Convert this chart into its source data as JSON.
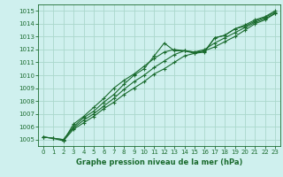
{
  "title": "Graphe pression niveau de la mer (hPa)",
  "background_color": "#cff0ee",
  "grid_color": "#aad8cc",
  "line_color": "#1a6b2e",
  "xlim": [
    -0.5,
    23.5
  ],
  "ylim": [
    1004.5,
    1015.5
  ],
  "xticks": [
    0,
    1,
    2,
    3,
    4,
    5,
    6,
    7,
    8,
    9,
    10,
    11,
    12,
    13,
    14,
    15,
    16,
    17,
    18,
    19,
    20,
    21,
    22,
    23
  ],
  "yticks": [
    1005,
    1006,
    1007,
    1008,
    1009,
    1010,
    1011,
    1012,
    1013,
    1014,
    1015
  ],
  "series": [
    {
      "x": [
        0,
        1,
        2,
        3,
        4,
        5,
        6,
        7,
        8,
        9,
        10,
        11,
        12,
        13,
        14,
        15,
        16,
        17,
        18,
        19,
        20,
        21,
        22,
        23
      ],
      "y": [
        1005.2,
        1005.1,
        1005.0,
        1006.0,
        1006.7,
        1007.2,
        1007.9,
        1008.5,
        1009.3,
        1010.0,
        1010.5,
        1011.5,
        1012.5,
        1011.9,
        1011.9,
        1011.7,
        1011.8,
        1012.9,
        1013.1,
        1013.6,
        1013.8,
        1014.2,
        1014.5,
        1014.9
      ]
    },
    {
      "x": [
        0,
        1,
        2,
        3,
        4,
        5,
        6,
        7,
        8,
        9,
        10,
        11,
        12,
        13,
        14,
        15,
        16,
        17,
        18,
        19,
        20,
        21,
        22,
        23
      ],
      "y": [
        1005.2,
        1005.1,
        1004.9,
        1005.8,
        1006.3,
        1006.8,
        1007.4,
        1007.9,
        1008.5,
        1009.0,
        1009.5,
        1010.1,
        1010.5,
        1011.0,
        1011.5,
        1011.7,
        1011.9,
        1012.2,
        1012.6,
        1013.0,
        1013.5,
        1014.0,
        1014.3,
        1014.8
      ]
    },
    {
      "x": [
        0,
        1,
        2,
        3,
        4,
        5,
        6,
        7,
        8,
        9,
        10,
        11,
        12,
        13,
        14,
        15,
        16,
        17,
        18,
        19,
        20,
        21,
        22,
        23
      ],
      "y": [
        1005.2,
        1005.1,
        1005.0,
        1005.9,
        1006.5,
        1007.0,
        1007.6,
        1008.2,
        1008.9,
        1009.5,
        1010.0,
        1010.6,
        1011.1,
        1011.6,
        1011.9,
        1011.8,
        1012.0,
        1012.5,
        1012.9,
        1013.3,
        1013.7,
        1014.1,
        1014.4,
        1014.8
      ]
    },
    {
      "x": [
        2,
        3,
        4,
        5,
        6,
        7,
        8,
        9,
        10,
        11,
        12,
        13,
        14,
        15,
        16,
        17,
        18,
        19,
        20,
        21,
        22,
        23
      ],
      "y": [
        1004.9,
        1006.2,
        1006.8,
        1007.5,
        1008.2,
        1009.0,
        1009.6,
        1010.1,
        1010.7,
        1011.3,
        1011.8,
        1012.0,
        1011.9,
        1011.8,
        1011.85,
        1012.9,
        1013.1,
        1013.6,
        1013.9,
        1014.3,
        1014.55,
        1015.0
      ]
    }
  ],
  "ytick_labels": [
    "1005",
    "1006",
    "1007",
    "1008",
    "1009",
    "1010",
    "1011",
    "1012",
    "1013",
    "1014",
    "1015"
  ]
}
